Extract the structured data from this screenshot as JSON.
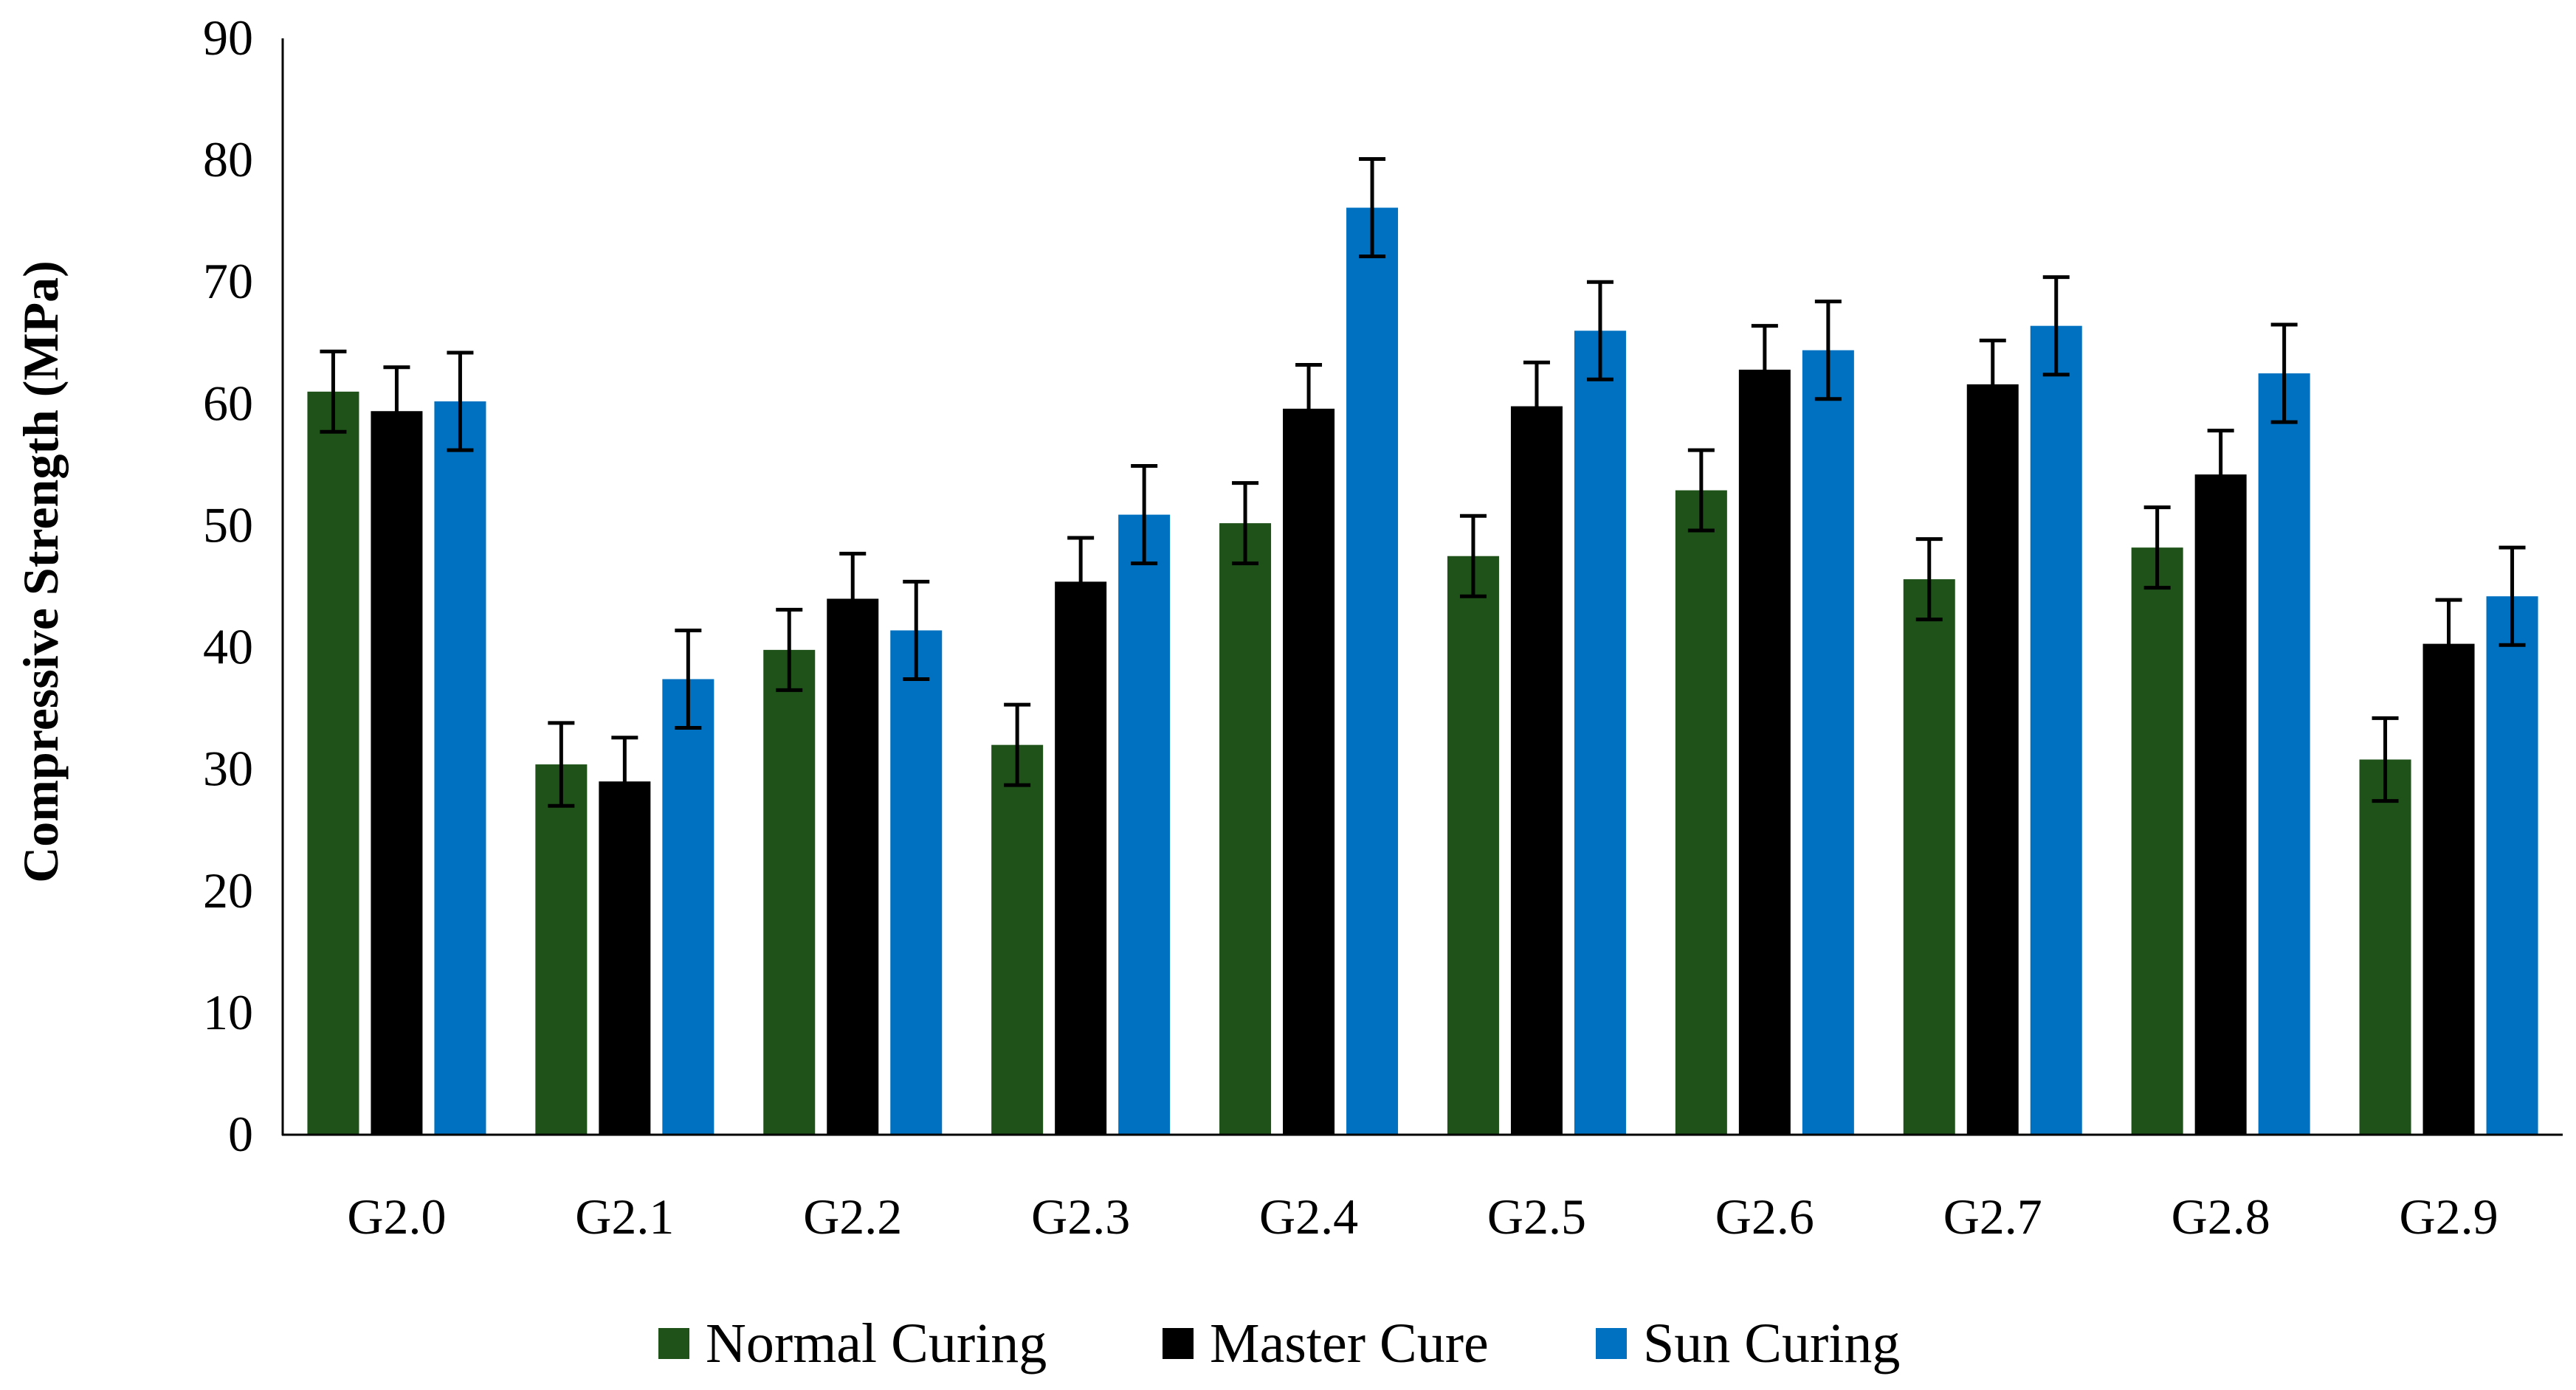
{
  "chart_data": {
    "type": "bar",
    "title": "",
    "xlabel": "",
    "ylabel": "Compressive Strength (MPa)",
    "ylim": [
      0,
      90
    ],
    "yticks": [
      0,
      10,
      20,
      30,
      40,
      50,
      60,
      70,
      80,
      90
    ],
    "ytick_labels": [
      "0",
      "10",
      "20",
      "30",
      "40",
      "50",
      "60",
      "70",
      "80",
      "90"
    ],
    "grid": false,
    "legend_position": "bottom-center",
    "categories": [
      "G2.0",
      "G2.1",
      "G2.2",
      "G2.3",
      "G2.4",
      "G2.5",
      "G2.6",
      "G2.7",
      "G2.8",
      "G2.9"
    ],
    "series": [
      {
        "name": "Normal Curing",
        "color": "#1e5219",
        "values": [
          61.0,
          30.4,
          39.8,
          32.0,
          50.2,
          47.5,
          52.9,
          45.6,
          48.2,
          30.8
        ],
        "errors": [
          3.3,
          3.4,
          3.3,
          3.3,
          3.3,
          3.3,
          3.3,
          3.3,
          3.3,
          3.4
        ]
      },
      {
        "name": "Master Cure",
        "color": "#000000",
        "values": [
          59.4,
          29.0,
          44.0,
          45.4,
          59.6,
          59.8,
          62.8,
          61.6,
          54.2,
          40.3
        ],
        "errors": [
          3.6,
          3.6,
          3.7,
          3.6,
          3.6,
          3.6,
          3.6,
          3.6,
          3.6,
          3.6
        ]
      },
      {
        "name": "Sun Curing",
        "color": "#0070c0",
        "values": [
          60.2,
          37.4,
          41.4,
          50.9,
          76.1,
          66.0,
          64.4,
          66.4,
          62.5,
          44.2
        ],
        "errors": [
          4.0,
          4.0,
          4.0,
          4.0,
          4.0,
          4.0,
          4.0,
          4.0,
          4.0,
          4.0
        ]
      }
    ]
  }
}
